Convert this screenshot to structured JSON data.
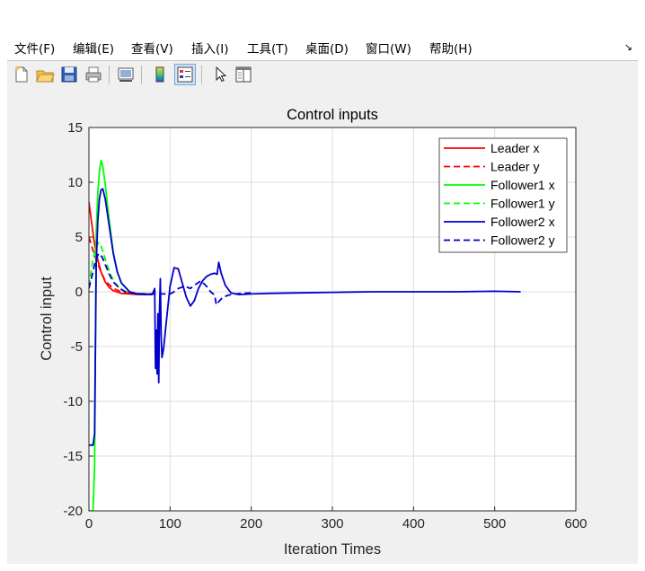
{
  "menu": [
    "文件(F)",
    "编辑(E)",
    "查看(V)",
    "插入(I)",
    "工具(T)",
    "桌面(D)",
    "窗口(W)",
    "帮助(H)"
  ],
  "menu_arrow": "↘",
  "toolbar": [
    {
      "name": "new-figure-icon",
      "icon": "new-file"
    },
    {
      "name": "open-file-icon",
      "icon": "folder"
    },
    {
      "name": "save-figure-icon",
      "icon": "floppy-disk"
    },
    {
      "name": "print-figure-icon",
      "icon": "printer"
    },
    {
      "name": "link-plot-icon",
      "icon": "link-plot"
    },
    {
      "name": "insert-colorbar-icon",
      "icon": "colorbar"
    },
    {
      "name": "insert-legend-icon",
      "icon": "legend"
    },
    {
      "name": "edit-plot-icon",
      "icon": "cursor-arrow"
    },
    {
      "name": "property-inspector-icon",
      "icon": "panel"
    }
  ],
  "chart_data": {
    "type": "line",
    "title": "Control inputs",
    "xlabel": "Iteration Times",
    "ylabel": "Control input",
    "xlim": [
      0,
      600
    ],
    "ylim": [
      -20,
      15
    ],
    "xticks": [
      0,
      100,
      200,
      300,
      400,
      500,
      600
    ],
    "yticks": [
      -20,
      -15,
      -10,
      -5,
      0,
      5,
      10,
      15
    ],
    "grid": true,
    "legend_position": "top-right",
    "series": [
      {
        "name": "Leader x",
        "color": "#ff0000",
        "dash": "solid",
        "x": [
          0,
          3,
          6,
          10,
          15,
          20,
          25,
          30,
          40,
          50,
          60,
          75
        ],
        "y": [
          8.2,
          6.5,
          4.8,
          3.2,
          1.8,
          0.9,
          0.4,
          0.1,
          -0.15,
          -0.2,
          -0.25,
          -0.25
        ]
      },
      {
        "name": "Leader y",
        "color": "#ff0000",
        "dash": "dashed",
        "x": [
          0,
          5,
          10,
          15,
          20,
          30,
          40,
          55,
          75
        ],
        "y": [
          5.0,
          3.8,
          2.7,
          1.8,
          1.0,
          0.3,
          0.0,
          -0.15,
          -0.2
        ]
      },
      {
        "name": "Follower1 x",
        "color": "#00ff00",
        "dash": "solid",
        "x": [
          0,
          5,
          7,
          9,
          11,
          13,
          15,
          17,
          20,
          25,
          30,
          35,
          40,
          50,
          60,
          75
        ],
        "y": [
          -20,
          -20,
          -16,
          5.5,
          9.0,
          11.0,
          12.0,
          11.5,
          9.8,
          6.5,
          3.6,
          1.8,
          0.8,
          0.0,
          -0.2,
          -0.25
        ]
      },
      {
        "name": "Follower1 y",
        "color": "#00ff00",
        "dash": "dashed",
        "x": [
          0,
          4,
          8,
          12,
          15,
          18,
          22,
          27,
          32,
          38,
          45,
          55,
          75
        ],
        "y": [
          0.5,
          2.5,
          4.0,
          4.5,
          4.2,
          3.5,
          2.5,
          1.5,
          0.8,
          0.3,
          0.0,
          -0.15,
          -0.2
        ]
      },
      {
        "name": "Follower2 x",
        "color": "#0000cc",
        "dash": "solid",
        "x": [
          0,
          5,
          7,
          9,
          11,
          13,
          15,
          17,
          20,
          25,
          30,
          35,
          40,
          50,
          60,
          70,
          78,
          81,
          82,
          83,
          84,
          85,
          86,
          87,
          88,
          89,
          90,
          92,
          95,
          100,
          105,
          110,
          115,
          120,
          125,
          130,
          135,
          140,
          145,
          150,
          155,
          158,
          160,
          163,
          168,
          175,
          185,
          200,
          220,
          260,
          300,
          350,
          400,
          450,
          500,
          532
        ],
        "y": [
          -14,
          -14,
          -13,
          2.5,
          6.5,
          8.5,
          9.3,
          9.4,
          8.5,
          6.0,
          3.5,
          1.8,
          0.8,
          0.0,
          -0.2,
          -0.25,
          -0.25,
          0.3,
          -7.0,
          -3.5,
          -7.5,
          -2.0,
          -8.3,
          -1.5,
          1.2,
          -4.0,
          -6.0,
          -5.2,
          -3.0,
          0.5,
          2.2,
          2.1,
          0.8,
          -0.5,
          -1.3,
          -0.8,
          0.3,
          1.0,
          1.4,
          1.6,
          1.7,
          1.6,
          2.7,
          1.7,
          0.6,
          -0.1,
          -0.25,
          -0.2,
          -0.15,
          -0.1,
          -0.05,
          0.0,
          0.0,
          0.0,
          0.05,
          0.0
        ]
      },
      {
        "name": "Follower2 y",
        "color": "#0000cc",
        "dash": "dashed",
        "x": [
          0,
          4,
          8,
          12,
          16,
          20,
          25,
          30,
          38,
          45,
          55,
          70,
          78,
          85,
          90,
          95,
          100,
          105,
          110,
          118,
          125,
          130,
          138,
          145,
          150,
          155,
          157,
          160,
          165,
          172,
          180,
          190,
          200
        ],
        "y": [
          0.3,
          1.5,
          2.8,
          3.5,
          3.2,
          2.5,
          1.6,
          0.9,
          0.3,
          0.0,
          -0.15,
          -0.2,
          -0.2,
          -0.2,
          -0.2,
          -0.2,
          -0.2,
          0.0,
          0.3,
          0.5,
          0.3,
          0.6,
          1.0,
          0.5,
          0.0,
          -0.3,
          -1.2,
          -0.9,
          -0.5,
          -0.3,
          -0.2,
          -0.15,
          -0.1
        ]
      }
    ]
  }
}
